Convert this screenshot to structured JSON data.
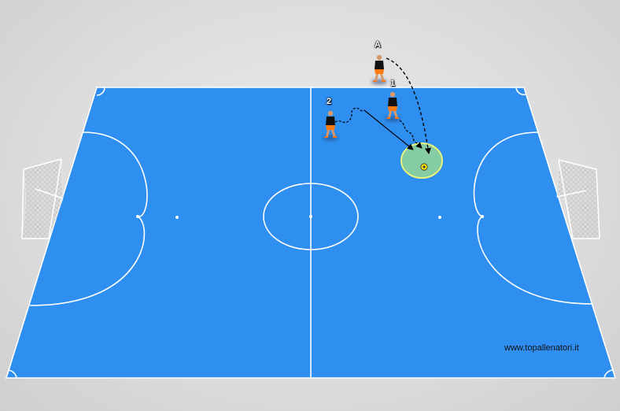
{
  "labels": {
    "player_a": "A",
    "player_1": "1",
    "player_2": "2"
  },
  "watermark": "www.topallenatori.it",
  "colors": {
    "court": "#2e8ff0",
    "court_line": "#ffffff",
    "background": "#dddddd",
    "target_zone": "#8fd39a",
    "shirt": "#111111",
    "shorts": "#ff7a12",
    "movement_line": "#000000"
  },
  "icons": [
    "player-icon",
    "goal-net-icon",
    "ball-icon",
    "target-zone-icon"
  ]
}
